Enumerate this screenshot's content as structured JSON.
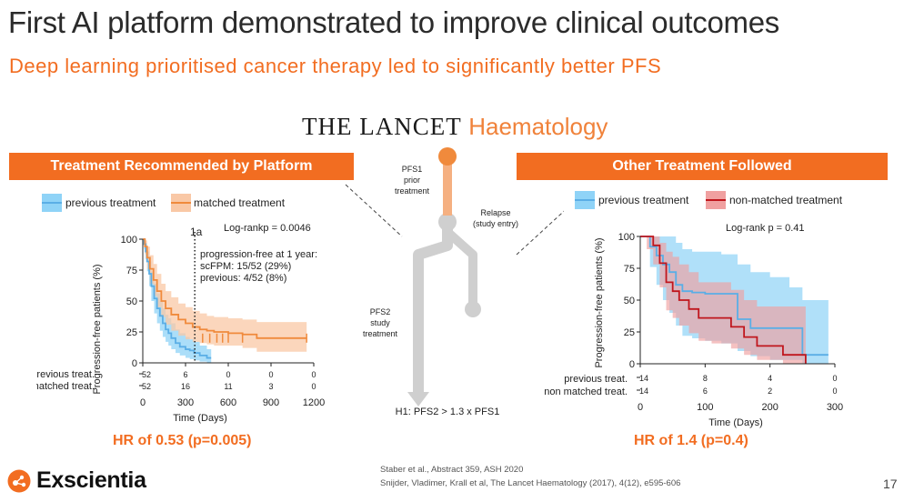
{
  "slide": {
    "title": "First AI platform demonstrated to improve clinical outcomes",
    "subtitle": "Deep learning prioritised cancer therapy led to significantly better PFS",
    "journal": {
      "part1": "THE LANCET",
      "part2": "Haematology"
    },
    "page_number": "17",
    "logo_text": "Exscientia",
    "references": [
      "Staber et al., Abstract 359, ASH 2020",
      "Snijder, Vladimer, Krall et al, The Lancet Haematology (2017), 4(12), e595-606"
    ]
  },
  "colors": {
    "orange": "#f26d21",
    "blue": "#5aaee6",
    "blue_fill": "#8fd3f7",
    "orange_fill": "#f9c8a6",
    "red": "#c0161d",
    "red_fill": "#f0a0a0",
    "purple_fill": "#9b7a9e"
  },
  "diagram": {
    "pfs1_label": [
      "PFS1",
      "prior",
      "treatment"
    ],
    "relapse_label": [
      "Relapse",
      "(study entry)"
    ],
    "pfs2_label": [
      "PFS2",
      "study",
      "treatment"
    ],
    "hypothesis": "H1: PFS2 > 1.3 x PFS1"
  },
  "left": {
    "banner": "Treatment Recommended by Platform",
    "hr": "HR of 0.53 (p=0.005)"
  },
  "right": {
    "banner": "Other Treatment Followed",
    "hr": "HR of 1.4 (p=0.4)"
  },
  "chart_data": [
    {
      "type": "line",
      "title": "",
      "xlabel": "Time (Days)",
      "ylabel": "Progression-free patients (%)",
      "xlim": [
        0,
        1200
      ],
      "ylim": [
        0,
        100
      ],
      "x_ticks": [
        0,
        300,
        600,
        900,
        1200
      ],
      "y_ticks": [
        0,
        25,
        50,
        75,
        100
      ],
      "legend": [
        "previous treatment",
        "matched treatment"
      ],
      "legend_position": "top",
      "logrank": "Log-rankp = 0.0046",
      "vline": {
        "x": 365,
        "label": "1a"
      },
      "annotation": [
        "progression-free at 1 year:",
        "scFPM:   15/52 (29%)",
        "previous:   4/52 (8%)"
      ],
      "series": [
        {
          "name": "previous treatment",
          "x": [
            0,
            10,
            20,
            30,
            45,
            60,
            80,
            100,
            120,
            140,
            160,
            180,
            200,
            230,
            260,
            300,
            330,
            360,
            400,
            450,
            480
          ],
          "y": [
            100,
            96,
            90,
            82,
            72,
            62,
            52,
            44,
            38,
            32,
            27,
            24,
            20,
            16,
            13,
            11,
            10,
            8,
            6,
            4,
            4
          ],
          "lower": [
            100,
            92,
            84,
            74,
            62,
            50,
            40,
            32,
            26,
            21,
            17,
            14,
            11,
            8,
            6,
            4,
            3,
            2,
            1,
            0,
            0
          ],
          "upper": [
            100,
            100,
            96,
            90,
            82,
            74,
            64,
            56,
            50,
            44,
            39,
            36,
            32,
            27,
            24,
            21,
            19,
            17,
            14,
            11,
            11
          ]
        },
        {
          "name": "matched treatment",
          "x": [
            0,
            15,
            30,
            50,
            75,
            100,
            130,
            160,
            200,
            250,
            300,
            350,
            400,
            450,
            500,
            600,
            700,
            800,
            1000,
            1150
          ],
          "y": [
            100,
            94,
            85,
            76,
            67,
            58,
            50,
            44,
            39,
            35,
            32,
            29,
            27,
            26,
            25,
            24,
            23,
            20,
            20,
            20
          ],
          "lower": [
            100,
            88,
            76,
            64,
            54,
            45,
            37,
            31,
            26,
            22,
            19,
            17,
            16,
            15,
            14,
            14,
            12,
            9,
            9,
            9
          ],
          "upper": [
            100,
            99,
            94,
            87,
            80,
            72,
            64,
            58,
            53,
            48,
            45,
            42,
            40,
            38,
            37,
            36,
            35,
            33,
            33,
            33
          ]
        }
      ],
      "risk_table": {
        "rows": [
          {
            "label": "previous treat.",
            "values": [
              "52",
              "6",
              "0",
              "0",
              "0"
            ]
          },
          {
            "label": "matched treat.",
            "values": [
              "52",
              "16",
              "11",
              "3",
              "0"
            ]
          }
        ]
      }
    },
    {
      "type": "line",
      "title": "",
      "xlabel": "Time (Days)",
      "ylabel": "Progression-free patients (%)",
      "xlim": [
        0,
        300
      ],
      "ylim": [
        0,
        100
      ],
      "x_ticks": [
        0,
        100,
        200,
        300
      ],
      "y_ticks": [
        0,
        25,
        50,
        75,
        100
      ],
      "legend": [
        "previous treatment",
        "non-matched treatment"
      ],
      "legend_position": "top",
      "logrank": "Log-rank p = 0.41",
      "series": [
        {
          "name": "previous treatment",
          "x": [
            0,
            15,
            25,
            35,
            45,
            55,
            65,
            80,
            100,
            125,
            150,
            170,
            200,
            230,
            250,
            260,
            290
          ],
          "y": [
            100,
            92,
            85,
            78,
            72,
            62,
            57,
            56,
            55,
            55,
            35,
            28,
            28,
            28,
            7,
            7,
            7
          ],
          "lower": [
            100,
            76,
            62,
            50,
            40,
            30,
            22,
            20,
            18,
            16,
            10,
            6,
            3,
            3,
            0,
            0,
            0
          ],
          "upper": [
            100,
            100,
            100,
            100,
            100,
            95,
            90,
            88,
            88,
            86,
            78,
            72,
            68,
            60,
            50,
            50,
            50
          ]
        },
        {
          "name": "non-matched treatment",
          "x": [
            0,
            10,
            20,
            30,
            40,
            50,
            60,
            75,
            90,
            110,
            140,
            160,
            180,
            200,
            220,
            240,
            255
          ],
          "y": [
            100,
            100,
            93,
            79,
            64,
            57,
            50,
            43,
            36,
            36,
            29,
            21,
            14,
            14,
            7,
            7,
            0
          ],
          "lower": [
            100,
            90,
            78,
            60,
            42,
            36,
            30,
            24,
            18,
            16,
            12,
            7,
            3,
            3,
            0,
            0,
            0
          ],
          "upper": [
            100,
            100,
            100,
            95,
            88,
            84,
            78,
            72,
            64,
            64,
            58,
            50,
            45,
            45,
            45,
            45,
            45
          ]
        }
      ],
      "risk_table": {
        "rows": [
          {
            "label": "previous treat.",
            "values": [
              "14",
              "8",
              "4",
              "0"
            ]
          },
          {
            "label": "non matched treat.",
            "values": [
              "14",
              "6",
              "2",
              "0"
            ]
          }
        ]
      }
    }
  ]
}
